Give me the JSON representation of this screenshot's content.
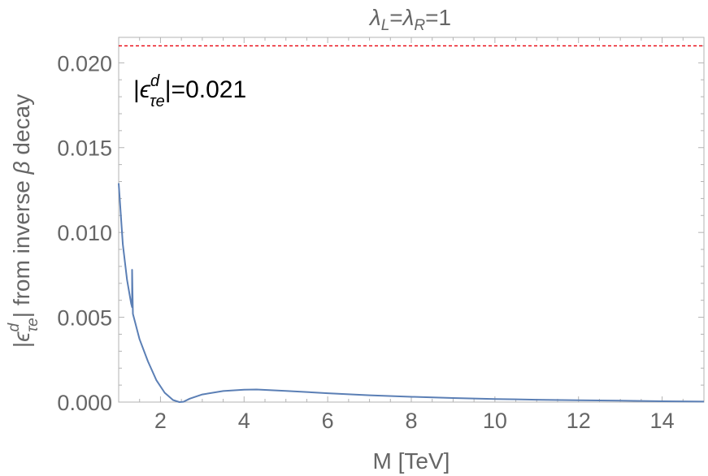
{
  "chart_data": {
    "type": "line",
    "title": {
      "lambda": "λ",
      "sub_left": "L",
      "equals": "=",
      "sub_right": "R",
      "value": "=1"
    },
    "xlabel": "M [TeV]",
    "ylabel": {
      "bar_open": "|",
      "eps": "ϵ",
      "sup": "d",
      "sub": "τe",
      "rest": "| from inverse ",
      "beta": "β",
      "tail": " decay"
    },
    "xlim": [
      1,
      15
    ],
    "ylim": [
      0,
      0.0215
    ],
    "x_ticks": [
      {
        "value": 2,
        "label": "2"
      },
      {
        "value": 4,
        "label": "4"
      },
      {
        "value": 6,
        "label": "6"
      },
      {
        "value": 8,
        "label": "8"
      },
      {
        "value": 10,
        "label": "10"
      },
      {
        "value": 12,
        "label": "12"
      },
      {
        "value": 14,
        "label": "14"
      }
    ],
    "y_ticks": [
      {
        "value": 0.0,
        "label": "0.000"
      },
      {
        "value": 0.005,
        "label": "0.005"
      },
      {
        "value": 0.01,
        "label": "0.010"
      },
      {
        "value": 0.015,
        "label": "0.015"
      },
      {
        "value": 0.02,
        "label": "0.020"
      }
    ],
    "grid": false,
    "series": [
      {
        "color": "#5b7fb5",
        "style": "solid",
        "x": [
          1.0,
          1.1,
          1.2,
          1.3,
          1.32,
          1.32,
          1.34,
          1.5,
          1.7,
          1.9,
          2.1,
          2.3,
          2.45,
          2.55,
          2.7,
          3.0,
          3.5,
          4.0,
          4.3,
          5.0,
          6.0,
          7.0,
          8.0,
          9.0,
          10.0,
          11.0,
          12.0,
          13.0,
          14.0,
          15.0
        ],
        "y": [
          0.0129,
          0.0093,
          0.0072,
          0.0058,
          0.0056,
          0.0078,
          0.0052,
          0.0037,
          0.0024,
          0.0013,
          0.00055,
          0.00012,
          0.0,
          2e-05,
          0.0002,
          0.00045,
          0.00065,
          0.00073,
          0.00074,
          0.00066,
          0.00052,
          0.0004,
          0.00031,
          0.00024,
          0.00018,
          0.00014,
          0.00011,
          8e-05,
          5e-05,
          3e-05
        ]
      },
      {
        "color": "#e8000b",
        "style": "dashed",
        "x": [
          1,
          15
        ],
        "y": [
          0.021,
          0.021
        ]
      }
    ],
    "annotation": {
      "bar_open": "|",
      "eps": "ϵ",
      "sup": "d",
      "sub": "τe",
      "rest": "|=0.021"
    }
  }
}
